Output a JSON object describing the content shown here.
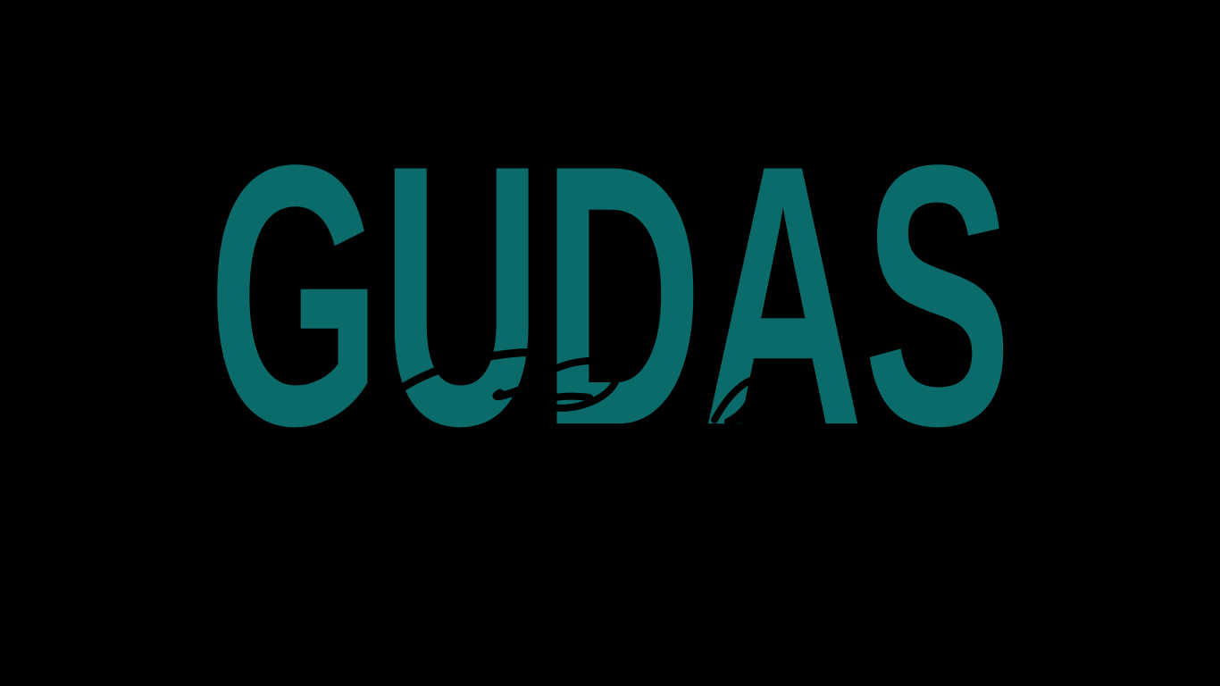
{
  "logo": {
    "wordmark": "GUDAS",
    "wordmark_color": "#0b6b6b",
    "background_color": "#000000",
    "script_color": "#000000",
    "script_stroke_color": "#000000"
  }
}
